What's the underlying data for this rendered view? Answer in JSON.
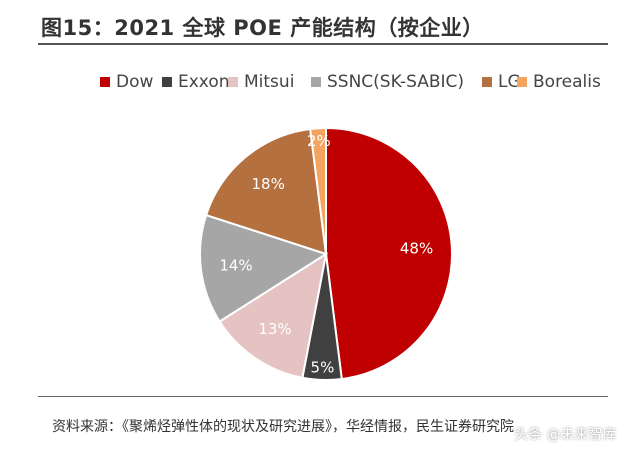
{
  "header": {
    "title": "图15：2021 全球 POE 产能结构（按企业）"
  },
  "chart_data": {
    "type": "pie",
    "title": "图15：2021 全球 POE 产能结构（按企业）",
    "legend_position": "top",
    "slices": [
      {
        "name": "Dow",
        "value": 48,
        "label": "48%",
        "color": "#C00000"
      },
      {
        "name": "Exxon",
        "value": 5,
        "label": "5%",
        "color": "#404040"
      },
      {
        "name": "Mitsui",
        "value": 13,
        "label": "13%",
        "color": "#E6C3C3"
      },
      {
        "name": "SSNC(SK-SABIC)",
        "value": 14,
        "label": "14%",
        "color": "#A6A6A6"
      },
      {
        "name": "LG",
        "value": 18,
        "label": "18%",
        "color": "#B5703F"
      },
      {
        "name": "Borealis",
        "value": 2,
        "label": "2%",
        "color": "#F4A460"
      }
    ]
  },
  "footer": {
    "source": "资料来源：《聚烯烃弹性体的现状及研究进展》，华经情报，民生证券研究院",
    "watermark": "头条 @未来智库"
  }
}
